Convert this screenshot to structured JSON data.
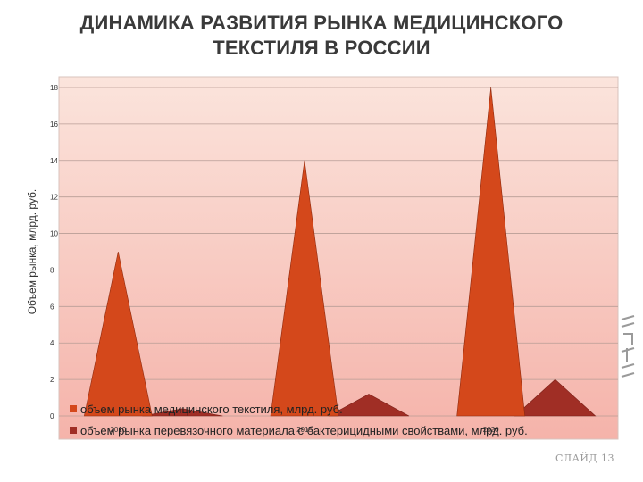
{
  "slide": {
    "title_line1": "ДИНАМИКА РАЗВИТИЯ РЫНКА МЕДИЦИНСКОГО",
    "title_line2": "ТЕКСТИЛЯ В РОССИИ",
    "slide_number": "СЛАЙД 13"
  },
  "colors": {
    "series1": "#d4481b",
    "series2": "#a02e25",
    "plot_top": "#fbe4dc",
    "plot_bottom": "#f5b3aa"
  },
  "chart_data": {
    "type": "area",
    "title": "",
    "xlabel": "",
    "ylabel": "Объем рынка, млрд. руб.",
    "ylim": [
      0,
      18
    ],
    "yticks": [
      0,
      2,
      4,
      6,
      8,
      10,
      12,
      14,
      16,
      18
    ],
    "grid": true,
    "legend_position": "bottom-left",
    "categories": [
      "2010",
      "2015",
      "2020"
    ],
    "series": [
      {
        "name": "объем рынка медицинского текстиля, млрд. руб.",
        "values": [
          9,
          14,
          18
        ]
      },
      {
        "name": "объем рынка перевязочного материала с бактерицидными свойствами, млрд. руб.",
        "values": [
          0.4,
          1.2,
          2
        ]
      }
    ]
  }
}
